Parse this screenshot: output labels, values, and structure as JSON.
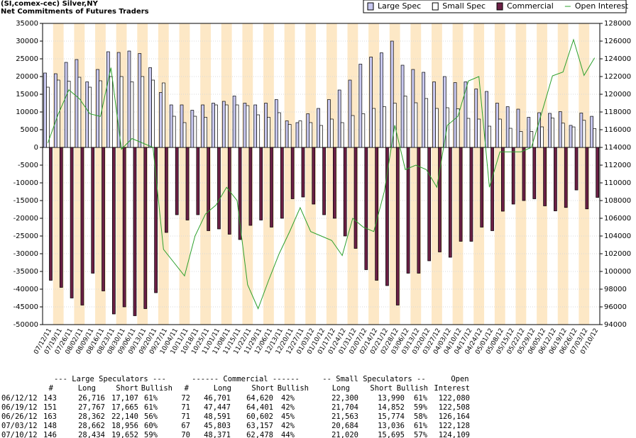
{
  "chart_data": {
    "type": "bar",
    "title": "(SI,comex-cec) Silver,NY",
    "subtitle": "Net Commitments of Futures Traders",
    "categories": [
      "07/12/11",
      "07/19/11",
      "07/26/11",
      "08/02/11",
      "08/09/11",
      "08/16/11",
      "08/23/11",
      "08/30/11",
      "09/06/11",
      "09/13/11",
      "09/20/11",
      "09/27/11",
      "10/04/11",
      "10/11/11",
      "10/18/11",
      "10/25/11",
      "11/01/11",
      "11/08/11",
      "11/15/11",
      "11/22/11",
      "11/29/11",
      "12/06/11",
      "12/13/11",
      "12/20/11",
      "12/27/11",
      "01/03/12",
      "01/10/12",
      "01/17/12",
      "01/24/12",
      "01/31/12",
      "02/07/12",
      "02/14/12",
      "02/21/12",
      "02/28/12",
      "03/06/12",
      "03/13/12",
      "03/20/12",
      "03/27/12",
      "04/03/12",
      "04/10/12",
      "04/17/12",
      "04/24/12",
      "05/01/12",
      "05/08/12",
      "05/15/12",
      "05/22/12",
      "05/29/12",
      "06/05/12",
      "06/12/12",
      "06/19/12",
      "06/26/12",
      "07/03/12",
      "07/10/12"
    ],
    "series": [
      {
        "name": "Large Spec",
        "color": "#c8c8f0",
        "values": [
          21000,
          20800,
          24000,
          24800,
          18500,
          22000,
          27000,
          26800,
          27200,
          26500,
          22500,
          15500,
          12000,
          12000,
          10500,
          12000,
          12500,
          13000,
          14500,
          12500,
          12000,
          12500,
          13500,
          7500,
          7000,
          9500,
          11000,
          13500,
          16200,
          19000,
          23500,
          25500,
          26700,
          30000,
          23200,
          22000,
          21200,
          18500,
          20000,
          18300,
          18500,
          16500,
          15800,
          12500,
          11500,
          10800,
          8500,
          9800,
          9609,
          10102,
          6222,
          9706,
          8782
        ]
      },
      {
        "name": "Small Spec",
        "color": "#ffffff",
        "values": [
          17000,
          19000,
          18700,
          19800,
          17000,
          18800,
          20000,
          20000,
          18500,
          20000,
          19000,
          18200,
          8800,
          7000,
          8800,
          8500,
          12000,
          12000,
          12000,
          11800,
          9200,
          8500,
          9800,
          6500,
          7500,
          7000,
          6200,
          8000,
          7000,
          9000,
          9500,
          11000,
          11500,
          12500,
          14500,
          12600,
          13800,
          11000,
          11200,
          10900,
          8200,
          8000,
          6000,
          8000,
          5400,
          4500,
          4500,
          5800,
          8310,
          6852,
          5789,
          7648,
          5325
        ]
      },
      {
        "name": "Commercial",
        "color": "#6b1f45",
        "values": [
          -37500,
          -39500,
          -42500,
          -44500,
          -35500,
          -40500,
          -47000,
          -45000,
          -47500,
          -45500,
          -41000,
          -24000,
          -19000,
          -20500,
          -19000,
          -23500,
          -23000,
          -24500,
          -26000,
          -22000,
          -20500,
          -22500,
          -20000,
          -14500,
          -14000,
          -16000,
          -19000,
          -20000,
          -25000,
          -28500,
          -34500,
          -37500,
          -39000,
          -44500,
          -35500,
          -35500,
          -32000,
          -29500,
          -31000,
          -26500,
          -26500,
          -22500,
          -23500,
          -18000,
          -16000,
          -15000,
          -14500,
          -16500,
          -17919,
          -16954,
          -12011,
          -17354,
          -14107
        ]
      },
      {
        "name": "Open Interest",
        "color": "#2ca02c",
        "axis": "y2",
        "type": "line",
        "values": [
          114500,
          117800,
          120500,
          119500,
          117800,
          117500,
          123000,
          113800,
          115000,
          114500,
          114000,
          102500,
          101000,
          99500,
          104000,
          106500,
          107500,
          109500,
          108000,
          98500,
          95800,
          99000,
          102000,
          104500,
          107200,
          104500,
          104000,
          103500,
          101800,
          106000,
          105000,
          104500,
          109000,
          116500,
          111500,
          112000,
          111500,
          109500,
          116500,
          117500,
          121500,
          122000,
          109500,
          113500,
          113500,
          113500,
          114000,
          118000,
          122080,
          122508,
          126164,
          122128,
          124109
        ]
      }
    ],
    "ylim": [
      -50000,
      35000
    ],
    "yticks": [
      -50000,
      -45000,
      -40000,
      -35000,
      -30000,
      -25000,
      -20000,
      -15000,
      -10000,
      -5000,
      0,
      5000,
      10000,
      15000,
      20000,
      25000,
      30000,
      35000
    ],
    "y2lim": [
      94000,
      128000
    ],
    "y2ticks": [
      94000,
      96000,
      98000,
      100000,
      102000,
      104000,
      106000,
      108000,
      110000,
      112000,
      114000,
      116000,
      118000,
      120000,
      122000,
      124000,
      126000,
      128000
    ],
    "legend": "top-right"
  },
  "table": {
    "groups": [
      "--- Large Speculators ---",
      "------ Commercial ------",
      "-- Small Speculators --",
      "Open"
    ],
    "columns": [
      "#",
      "Long",
      "Short",
      "Bullish",
      "#",
      "Long",
      "Short",
      "Bullish",
      "Long",
      "Short",
      "Bullish",
      "Interest"
    ],
    "rows": [
      [
        "06/12/12",
        "143",
        "26,716",
        "17,107",
        "61%",
        "72",
        "46,701",
        "64,620",
        "42%",
        "22,300",
        "13,990",
        "61%",
        "122,080"
      ],
      [
        "06/19/12",
        "151",
        "27,767",
        "17,665",
        "61%",
        "71",
        "47,447",
        "64,401",
        "42%",
        "21,704",
        "14,852",
        "59%",
        "122,508"
      ],
      [
        "06/26/12",
        "163",
        "28,362",
        "22,140",
        "56%",
        "71",
        "48,591",
        "60,602",
        "45%",
        "21,563",
        "15,774",
        "58%",
        "126,164"
      ],
      [
        "07/03/12",
        "148",
        "28,662",
        "18,956",
        "60%",
        "67",
        "45,803",
        "63,157",
        "42%",
        "20,684",
        "13,036",
        "61%",
        "122,128"
      ],
      [
        "07/10/12",
        "146",
        "28,434",
        "19,652",
        "59%",
        "70",
        "48,371",
        "62,478",
        "44%",
        "21,020",
        "15,695",
        "57%",
        "124,109"
      ]
    ]
  }
}
